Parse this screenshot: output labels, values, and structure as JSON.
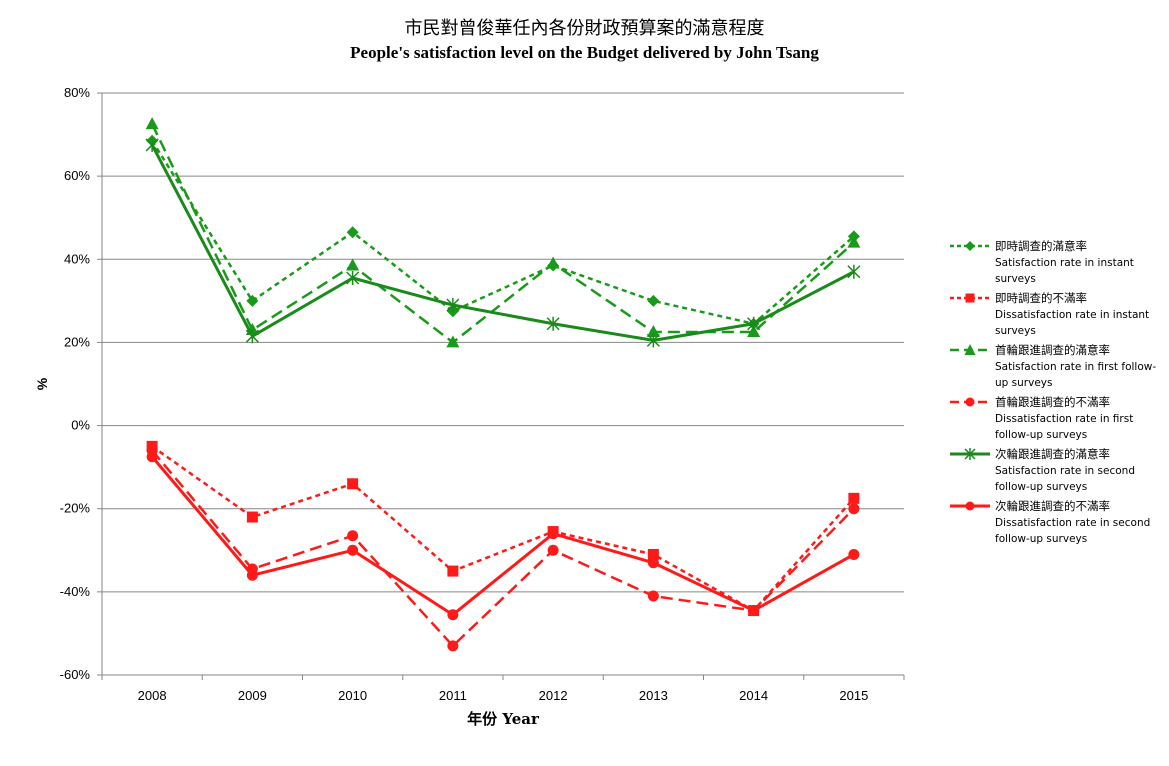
{
  "chart_data": {
    "type": "line",
    "title": "市民對曾俊華任內各份財政預算案的滿意程度",
    "subtitle": "People's satisfaction level on the Budget delivered by John Tsang",
    "xlabel": "年份 Year",
    "ylabel": "%",
    "x": [
      "2008",
      "2009",
      "2010",
      "2011",
      "2012",
      "2013",
      "2014",
      "2015"
    ],
    "ylim": [
      -60,
      80
    ],
    "yticks": [
      "-60%",
      "-40%",
      "-20%",
      "0%",
      "20%",
      "40%",
      "60%",
      "80%"
    ],
    "grid": true,
    "legend_position": "right",
    "series": [
      {
        "name": "即時調查的滿意率",
        "description": "Satisfaction rate in instant surveys",
        "color": "#1a9a1a",
        "line": "dotted",
        "marker": "diamond",
        "values": [
          68.5,
          30.0,
          46.5,
          27.5,
          38.5,
          30.0,
          24.5,
          45.5
        ]
      },
      {
        "name": "即時調查的不滿率",
        "description": "Dissatisfaction rate in instant surveys",
        "color": "#ff1a1a",
        "line": "dotted",
        "marker": "square",
        "values": [
          -5.0,
          -22.0,
          -14.0,
          -35.0,
          -25.5,
          -31.0,
          -44.5,
          -17.5
        ]
      },
      {
        "name": "首輪跟進調查的滿意率",
        "description": "Satisfaction rate in first follow-up surveys",
        "color": "#1a9a1a",
        "line": "dashed",
        "marker": "triangle",
        "values": [
          72.5,
          23.0,
          38.5,
          20.0,
          39.0,
          22.5,
          22.5,
          44.0
        ]
      },
      {
        "name": "首輪跟進調查的不滿率",
        "description": "Dissatisfaction rate in first follow-up surveys",
        "color": "#ff1a1a",
        "line": "dashed",
        "marker": "circle",
        "values": [
          -6.0,
          -34.5,
          -26.5,
          -53.0,
          -30.0,
          -41.0,
          -44.5,
          -20.0
        ]
      },
      {
        "name": "次輪跟進調查的滿意率",
        "description": "Satisfaction rate in second follow-up surveys",
        "color": "#1a8a1a",
        "line": "solid",
        "marker": "star",
        "values": [
          67.5,
          21.5,
          35.5,
          29.0,
          24.5,
          20.5,
          24.5,
          37.0
        ]
      },
      {
        "name": "次輪跟進調查的不滿率",
        "description": "Dissatisfaction rate in second follow-up surveys",
        "color": "#ff1a1a",
        "line": "solid",
        "marker": "circle",
        "values": [
          -7.5,
          -36.0,
          -30.0,
          -45.5,
          -26.0,
          -33.0,
          -44.5,
          -31.0
        ]
      }
    ]
  }
}
